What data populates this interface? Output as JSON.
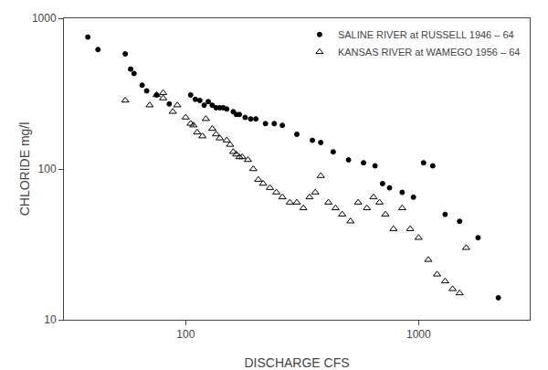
{
  "chart_data": {
    "type": "scatter",
    "xlabel": "DISCHARGE CFS",
    "ylabel": "CHLORIDE mg/l",
    "log": true,
    "grid": false,
    "legend": "upper right",
    "xlim": [
      30,
      3000
    ],
    "ylim": [
      10,
      1000
    ],
    "xticks": [
      100,
      1000
    ],
    "yticks": [
      10,
      100,
      1000
    ],
    "series": [
      {
        "name": "SALINE RIVER at RUSSELL 1946 – 64",
        "color": "#000000",
        "marker": "circle",
        "x": [
          38,
          42,
          55,
          58,
          60,
          65,
          68,
          75,
          85,
          105,
          110,
          115,
          120,
          125,
          130,
          135,
          140,
          145,
          150,
          160,
          165,
          170,
          180,
          190,
          200,
          220,
          240,
          260,
          300,
          350,
          380,
          430,
          500,
          580,
          650,
          700,
          750,
          850,
          950,
          1050,
          1150,
          1300,
          1500,
          1800,
          2200
        ],
        "values": [
          750,
          620,
          580,
          460,
          430,
          360,
          330,
          310,
          270,
          310,
          290,
          285,
          265,
          280,
          265,
          255,
          255,
          255,
          250,
          240,
          230,
          230,
          220,
          215,
          215,
          200,
          200,
          195,
          170,
          155,
          150,
          130,
          115,
          110,
          105,
          80,
          75,
          70,
          65,
          110,
          105,
          50,
          45,
          35,
          14
        ]
      },
      {
        "name": "KANSAS RIVER at WAMEGO 1956 – 64",
        "color": "#000000",
        "marker": "open-triangle",
        "x": [
          55,
          70,
          75,
          80,
          80,
          88,
          92,
          100,
          105,
          108,
          112,
          118,
          122,
          130,
          135,
          140,
          150,
          155,
          160,
          165,
          170,
          175,
          185,
          195,
          205,
          215,
          230,
          245,
          260,
          280,
          300,
          320,
          340,
          360,
          380,
          410,
          440,
          470,
          510,
          550,
          600,
          640,
          680,
          720,
          780,
          850,
          920,
          1000,
          1100,
          1200,
          1300,
          1400,
          1500,
          1600
        ],
        "values": [
          285,
          265,
          310,
          320,
          295,
          240,
          265,
          220,
          200,
          195,
          175,
          165,
          215,
          185,
          170,
          160,
          155,
          145,
          130,
          125,
          120,
          120,
          115,
          100,
          85,
          80,
          75,
          70,
          65,
          60,
          60,
          55,
          65,
          70,
          90,
          60,
          55,
          50,
          45,
          60,
          55,
          65,
          60,
          50,
          40,
          55,
          40,
          35,
          25,
          20,
          18,
          16,
          15,
          30
        ]
      }
    ]
  }
}
